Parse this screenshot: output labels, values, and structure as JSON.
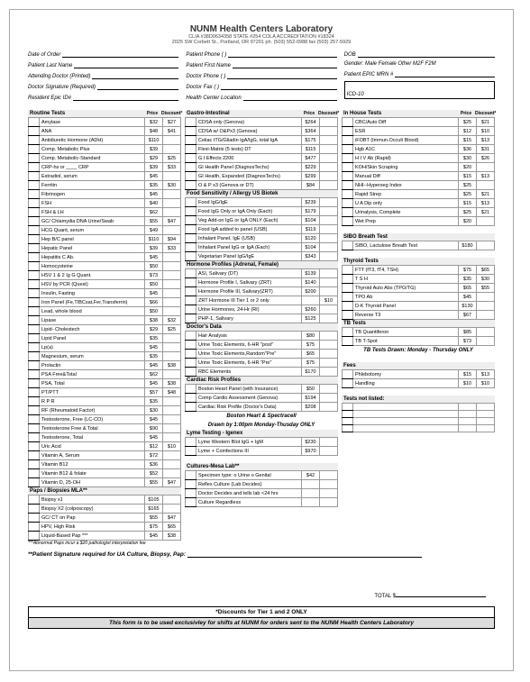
{
  "header": {
    "title": "NUNM Health Centers Laboratory",
    "line1": "CLIA #38D0634358      STATE #254      COLA ACCREDITATION #18324",
    "line2": "2025 SW Corbett St., Portland, OR 97201     ph. (503) 552-0988    fax (503) 257-5929"
  },
  "patient": {
    "l1a": "Date of Order",
    "l2a": "Patient Last Name",
    "l3a": "Attending Doctor (Printed)",
    "l4a": "Doctor Signature (Required)",
    "l5a": "Resident Epic ID#",
    "l1b": "Patient Phone (        )",
    "l2b": "Patient First Name",
    "l3b": "Doctor Phone (        )",
    "l4b": "Doctor Fax    (        )",
    "l5b": "Health Center Location",
    "l1c": "DOB",
    "l2c": "Gender:   Male    Female    Other   M2F   F2M",
    "l3c": "Patient EPIC MRN #",
    "l4c": "ICD-10"
  },
  "colheads": {
    "price": "Price",
    "discount": "Discount*"
  },
  "sections": {
    "routine": "Routine Tests",
    "gi": "Gastro-Intestinal",
    "food": "Food Sensitivity / Allergy  US Biotek",
    "hormone": "Hormone Profiles (Adrenal, Female)",
    "doctors": "Doctor's Data",
    "cardiac": "Cardiac Risk Profiles",
    "lyme": "Lyme Testing - Igenex",
    "cultures": "Cultures-Mesa Lab**",
    "inhouse": "In House Tests",
    "sibo": "SIBO Breath Test",
    "thyroid": "Thyroid Tests",
    "tbtests": "TB Tests",
    "fees": "Fees",
    "notlisted": "Tests not listed:",
    "paps": "Paps / Biopsies MLA**"
  },
  "routine": [
    {
      "n": "Amylase",
      "p": "$32",
      "d": "$27"
    },
    {
      "n": "ANA",
      "p": "$48",
      "d": "$41"
    },
    {
      "n": "Antidiuretic Hormone (ADH)",
      "p": "$110",
      "d": ""
    },
    {
      "n": "Comp. Metabolic Plus",
      "p": "$39",
      "d": ""
    },
    {
      "n": "Comp. Metabolic-Standard",
      "p": "$29",
      "d": "$25"
    },
    {
      "n": "CRP-hs or ____ CRP",
      "p": "$39",
      "d": "$33"
    },
    {
      "n": "Estradiol, serum",
      "p": "$45",
      "d": ""
    },
    {
      "n": "Ferritin",
      "p": "$35",
      "d": "$30"
    },
    {
      "n": "Fibrinogen",
      "p": "$45",
      "d": ""
    },
    {
      "n": "FSH",
      "p": "$40",
      "d": ""
    },
    {
      "n": "FSH & LH",
      "p": "$62",
      "d": ""
    },
    {
      "n": "GC/ Chlamydia DNA  Urine/Swab",
      "p": "$55",
      "d": "$47"
    },
    {
      "n": "HCG Quant, serum",
      "p": "$49",
      "d": ""
    },
    {
      "n": "Hep  B/C panel",
      "p": "$110",
      "d": "$94"
    },
    {
      "n": "Hepatic Panel",
      "p": "$39",
      "d": "$33"
    },
    {
      "n": "Hepatitis C Ab.",
      "p": "$45",
      "d": ""
    },
    {
      "n": "Homocysteine",
      "p": "$50",
      "d": ""
    },
    {
      "n": "HSV 1 & 2 Ig G Quant.",
      "p": "$73",
      "d": ""
    },
    {
      "n": "HSV by PCR  (Quest)",
      "p": "$50",
      "d": ""
    },
    {
      "n": "Insulin, Fasting",
      "p": "$45",
      "d": ""
    },
    {
      "n": "Iron Panel (Fe,TIBCsat,Fer,Transferrin)",
      "p": "$66",
      "d": ""
    },
    {
      "n": "Lead, whole blood",
      "p": "$50",
      "d": ""
    },
    {
      "n": "Lipase",
      "p": "$38",
      "d": "$32"
    },
    {
      "n": "Lipid- Cholestech",
      "p": "$29",
      "d": "$25"
    },
    {
      "n": "Lipid Panel",
      "p": "$35",
      "d": ""
    },
    {
      "n": "Lp(a)",
      "p": "$45",
      "d": ""
    },
    {
      "n": "Magnesium, serum",
      "p": "$35",
      "d": ""
    },
    {
      "n": "Prolactin",
      "p": "$45",
      "d": "$38"
    },
    {
      "n": "PSA Free&Total",
      "p": "$62",
      "d": ""
    },
    {
      "n": "PSA, Total",
      "p": "$45",
      "d": "$38"
    },
    {
      "n": "PT/PTT",
      "p": "$57",
      "d": "$48"
    },
    {
      "n": "R P R",
      "p": "$35",
      "d": ""
    },
    {
      "n": "RF  (Rheumatoid Factor)",
      "p": "$30",
      "d": ""
    },
    {
      "n": "Testosterone, Free  (LC-CO)",
      "p": "$45",
      "d": ""
    },
    {
      "n": "Testosterone Free & Total",
      "p": "$90",
      "d": ""
    },
    {
      "n": "Testosterone, Total",
      "p": "$45",
      "d": ""
    },
    {
      "n": "Uric Acid",
      "p": "$12",
      "d": "$10"
    },
    {
      "n": "Vitamin A, Serum",
      "p": "$72",
      "d": ""
    },
    {
      "n": "Vitamin B12",
      "p": "$36",
      "d": ""
    },
    {
      "n": "Vitamin B12 & folate",
      "p": "$52",
      "d": ""
    },
    {
      "n": "Vitamin D, 25-OH",
      "p": "$55",
      "d": "$47"
    }
  ],
  "paps": [
    {
      "n": "Biopsy x1",
      "p": "$105",
      "d": ""
    },
    {
      "n": "Biopsy X2 (colposcopy)",
      "p": "$165",
      "d": ""
    },
    {
      "n": "GC/ CT on Pap",
      "p": "$55",
      "d": "$47"
    },
    {
      "n": "HPV, High Risk",
      "p": "$75",
      "d": "$65"
    },
    {
      "n": "Liquid-Based Pap ***",
      "p": "$45",
      "d": "$38"
    }
  ],
  "paps_note": "***Abnormal Paps incur a $20 pathologist interpretation fee",
  "gi": [
    {
      "n": "CDSA only (Genova)",
      "p": "$264",
      "d": ""
    },
    {
      "n": "CDSA w/ O&Px3 (Genova)",
      "p": "$364",
      "d": ""
    },
    {
      "n": "Celiac tTG/Gliadin IgA/IgG, total IgA",
      "p": "$175",
      "d": ""
    },
    {
      "n": "Flexi-Matrix  (5 tests) DT",
      "p": "$115",
      "d": ""
    },
    {
      "n": "G I Effects 2200",
      "p": "$477",
      "d": ""
    },
    {
      "n": "GI Health Panel (DiagnosTechs)",
      "p": "$229",
      "d": ""
    },
    {
      "n": "GI Health, Expanded (DiagnosTechs)",
      "p": "$299",
      "d": ""
    },
    {
      "n": "O & P x3  (Genova or DT)",
      "p": "$84",
      "d": ""
    }
  ],
  "food": [
    {
      "n": "Food IgG/IgE",
      "p": "$239",
      "d": ""
    },
    {
      "n": "Food IgG Only  or  IgA Only (Each)",
      "p": "$179",
      "d": ""
    },
    {
      "n": "Veg Add-on IgG or IgA ONLY (Each)",
      "p": "$104",
      "d": ""
    },
    {
      "n": "Food IgA  added to  panel (USB)",
      "p": "$119",
      "d": ""
    },
    {
      "n": "Inhalant Panel, IgE (USB)",
      "p": "$120",
      "d": ""
    },
    {
      "n": "Inhalant Panel IgG or IgA (Each)",
      "p": "$104",
      "d": ""
    },
    {
      "n": "Vegetarian Panel IgG/IgE",
      "p": "$343",
      "d": ""
    }
  ],
  "hormone": [
    {
      "n": "ASI, Salivary (DT)",
      "p": "$139",
      "d": ""
    },
    {
      "n": "Hormone Profile I, Salivary (ZRT)",
      "p": "$140",
      "d": ""
    },
    {
      "n": "Hormone Profile III, Salivary(ZRT)",
      "p": "$200",
      "d": ""
    },
    {
      "n": "ZRT Hormone III   Tier 1 or 2 only",
      "p": "",
      "d": "$10"
    },
    {
      "n": "Urine Hormones, 24-Hr (RI)",
      "p": "$260",
      "d": ""
    },
    {
      "n": "PHP-1, Salivary",
      "p": "$125",
      "d": ""
    }
  ],
  "doctors": [
    {
      "n": "Hair Analysis",
      "p": "$80",
      "d": ""
    },
    {
      "n": "Urine Toxic Elements, 6-HR \"post\"",
      "p": "$75",
      "d": ""
    },
    {
      "n": "Urine Toxic Elements,Random\"Pre\"",
      "p": "$65",
      "d": ""
    },
    {
      "n": "Urine Toxic Elements, 6-HR \"Pre\"",
      "p": "$75",
      "d": ""
    },
    {
      "n": "RBC Elements",
      "p": "$170",
      "d": ""
    }
  ],
  "cardiac": [
    {
      "n": "Boston Heart Panel (with Insurance)",
      "p": "$50",
      "d": ""
    },
    {
      "n": "Comp Cardio Assessment (Genova)",
      "p": "$194",
      "d": ""
    },
    {
      "n": "Cardiac Risk Profile (Doctor's Data)",
      "p": "$208",
      "d": ""
    }
  ],
  "cardiac_note1": "Boston Heart & Spectracell",
  "cardiac_note2": "Drawn by 1:00pm Monday-Thusday ONLY",
  "lyme": [
    {
      "n": "Lyme Western Blot IgG + IgM",
      "p": "$230",
      "d": ""
    },
    {
      "n": "Lyme + Coinfections III",
      "p": "$970",
      "d": ""
    }
  ],
  "cultures": [
    {
      "n": "Specimen type:    o Urine   o Genital",
      "p": "$42",
      "d": ""
    },
    {
      "n": "Reflex Culture (Lab Decides)",
      "p": "",
      "d": ""
    },
    {
      "n": "Doctor Decides and tells lab <24 hrs",
      "p": "",
      "d": ""
    },
    {
      "n": "Culture Regardless",
      "p": "",
      "d": ""
    }
  ],
  "inhouse": [
    {
      "n": "CBC/Auto Diff",
      "p": "$25",
      "d": "$21"
    },
    {
      "n": "ESR",
      "p": "$12",
      "d": "$10"
    },
    {
      "n": "iFOBT (Immun.Occult Blood)",
      "p": "$15",
      "d": "$13"
    },
    {
      "n": "Hgb A1C",
      "p": "$36",
      "d": "$31"
    },
    {
      "n": "H I V Ab (Rapid)",
      "p": "$30",
      "d": "$26"
    },
    {
      "n": "KOH/Skin Scraping",
      "p": "$20",
      "d": ""
    },
    {
      "n": "Manual Diff",
      "p": "$15",
      "d": "$13"
    },
    {
      "n": "NHI--Hyperseg Index",
      "p": "$25",
      "d": ""
    },
    {
      "n": "Rapid Strep",
      "p": "$25",
      "d": "$21"
    },
    {
      "n": "U A Dip only",
      "p": "$15",
      "d": "$13"
    },
    {
      "n": "Urinalysis, Complete",
      "p": "$25",
      "d": "$21"
    },
    {
      "n": "Wet Prep",
      "p": "$20",
      "d": ""
    }
  ],
  "sibo": [
    {
      "n": "SIBO, Lactulose Breath Test",
      "p": "$180",
      "d": ""
    }
  ],
  "thyroid": [
    {
      "n": "FTT  (fT3, fT4, TSH)",
      "p": "$75",
      "d": "$65"
    },
    {
      "n": "T S H",
      "p": "$35",
      "d": "$30"
    },
    {
      "n": "Thyroid Auto Abs (TPO/TG)",
      "p": "$65",
      "d": "$55"
    },
    {
      "n": "TPO Ab",
      "p": "$45",
      "d": ""
    },
    {
      "n": "D-K Thyroid Panel",
      "p": "$130",
      "d": ""
    },
    {
      "n": "Reverse T3",
      "p": "$67",
      "d": ""
    }
  ],
  "tb": [
    {
      "n": "TB Quantiferon",
      "p": "$85",
      "d": ""
    },
    {
      "n": "TB T-Spot",
      "p": "$73",
      "d": ""
    }
  ],
  "tb_note": "TB Tests Drawn: Monday - Thursday ONLY",
  "fees": [
    {
      "n": "Phlebotomy",
      "p": "$15",
      "d": "$13"
    },
    {
      "n": "Handling",
      "p": "$10",
      "d": "$10"
    }
  ],
  "sig_line": "**Patient Signature required for UA Culture, Biopsy, Pap:",
  "total_label": "TOTAL  $",
  "footer1": "*Discounts for Tier 1 and 2 ONLY",
  "footer2": "This form is to be used exclusivley for shifts at NUNM for orders sent to the NUNM Health Centers Laboratory"
}
